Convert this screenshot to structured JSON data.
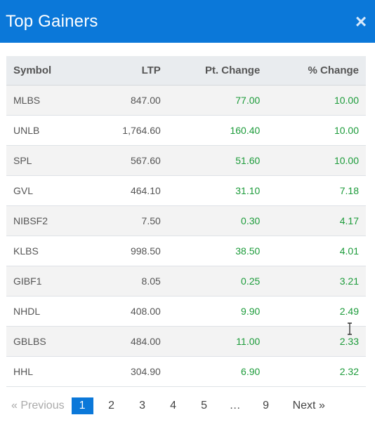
{
  "header": {
    "title": "Top Gainers",
    "close_symbol": "×"
  },
  "table": {
    "columns": [
      "Symbol",
      "LTP",
      "Pt. Change",
      "% Change"
    ],
    "rows": [
      {
        "symbol": "MLBS",
        "ltp": "847.00",
        "pt_change": "77.00",
        "pct_change": "10.00"
      },
      {
        "symbol": "UNLB",
        "ltp": "1,764.60",
        "pt_change": "160.40",
        "pct_change": "10.00"
      },
      {
        "symbol": "SPL",
        "ltp": "567.60",
        "pt_change": "51.60",
        "pct_change": "10.00"
      },
      {
        "symbol": "GVL",
        "ltp": "464.10",
        "pt_change": "31.10",
        "pct_change": "7.18"
      },
      {
        "symbol": "NIBSF2",
        "ltp": "7.50",
        "pt_change": "0.30",
        "pct_change": "4.17"
      },
      {
        "symbol": "KLBS",
        "ltp": "998.50",
        "pt_change": "38.50",
        "pct_change": "4.01"
      },
      {
        "symbol": "GIBF1",
        "ltp": "8.05",
        "pt_change": "0.25",
        "pct_change": "3.21"
      },
      {
        "symbol": "NHDL",
        "ltp": "408.00",
        "pt_change": "9.90",
        "pct_change": "2.49"
      },
      {
        "symbol": "GBLBS",
        "ltp": "484.00",
        "pt_change": "11.00",
        "pct_change": "2.33"
      },
      {
        "symbol": "HHL",
        "ltp": "304.90",
        "pt_change": "6.90",
        "pct_change": "2.32"
      }
    ]
  },
  "pagination": {
    "previous": "« Previous",
    "pages": [
      "1",
      "2",
      "3",
      "4",
      "5"
    ],
    "ellipsis": "…",
    "last_page": "9",
    "next": "Next »",
    "active_page": "1"
  },
  "colors": {
    "header_bg": "#0b78d9",
    "positive": "#1c9b3a",
    "active_page_bg": "#0b78d9"
  }
}
